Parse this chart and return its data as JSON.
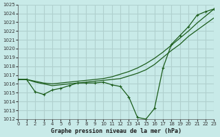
{
  "title": "Graphe pression niveau de la mer (hPa)",
  "background_color": "#c8eae8",
  "grid_color": "#b0d0ce",
  "line_color": "#1a5c1a",
  "xlim": [
    0,
    23
  ],
  "ylim": [
    1012,
    1025
  ],
  "yticks": [
    1012,
    1013,
    1014,
    1015,
    1016,
    1017,
    1018,
    1019,
    1020,
    1021,
    1022,
    1023,
    1024,
    1025
  ],
  "xticks": [
    0,
    1,
    2,
    3,
    4,
    5,
    6,
    7,
    8,
    9,
    10,
    11,
    12,
    13,
    14,
    15,
    16,
    17,
    18,
    19,
    20,
    21,
    22,
    23
  ],
  "line1_x": [
    0,
    1,
    2,
    3,
    4,
    5,
    6,
    7,
    8,
    9,
    10,
    11,
    12,
    13,
    14,
    15,
    16,
    17,
    18,
    19,
    20,
    21,
    22,
    23
  ],
  "line1_y": [
    1016.5,
    1016.5,
    1015.1,
    1014.8,
    1015.3,
    1015.5,
    1015.8,
    1016.1,
    1016.1,
    1016.1,
    1016.2,
    1015.9,
    1015.7,
    1014.5,
    1012.2,
    1012.0,
    1013.2,
    1017.8,
    1020.5,
    1021.5,
    1022.5,
    1023.8,
    1024.2,
    1024.5
  ],
  "line2_x": [
    0,
    1,
    2,
    3,
    4,
    5,
    6,
    7,
    8,
    9,
    10,
    11,
    12,
    13,
    14,
    15,
    16,
    17,
    18,
    19,
    20,
    21,
    22,
    23
  ],
  "line2_y": [
    1016.5,
    1016.5,
    1016.2,
    1016.0,
    1015.8,
    1015.9,
    1016.0,
    1016.1,
    1016.2,
    1016.3,
    1016.4,
    1016.5,
    1016.6,
    1016.9,
    1017.2,
    1017.6,
    1018.2,
    1019.0,
    1019.8,
    1020.5,
    1021.4,
    1022.1,
    1022.8,
    1023.5
  ],
  "line3_x": [
    0,
    1,
    2,
    3,
    4,
    5,
    6,
    7,
    8,
    9,
    10,
    11,
    12,
    13,
    14,
    15,
    16,
    17,
    18,
    19,
    20,
    21,
    22,
    23
  ],
  "line3_y": [
    1016.5,
    1016.5,
    1016.3,
    1016.1,
    1016.0,
    1016.1,
    1016.2,
    1016.3,
    1016.4,
    1016.5,
    1016.6,
    1016.8,
    1017.1,
    1017.4,
    1017.8,
    1018.3,
    1018.9,
    1019.6,
    1020.4,
    1021.2,
    1022.0,
    1022.9,
    1023.7,
    1024.5
  ]
}
